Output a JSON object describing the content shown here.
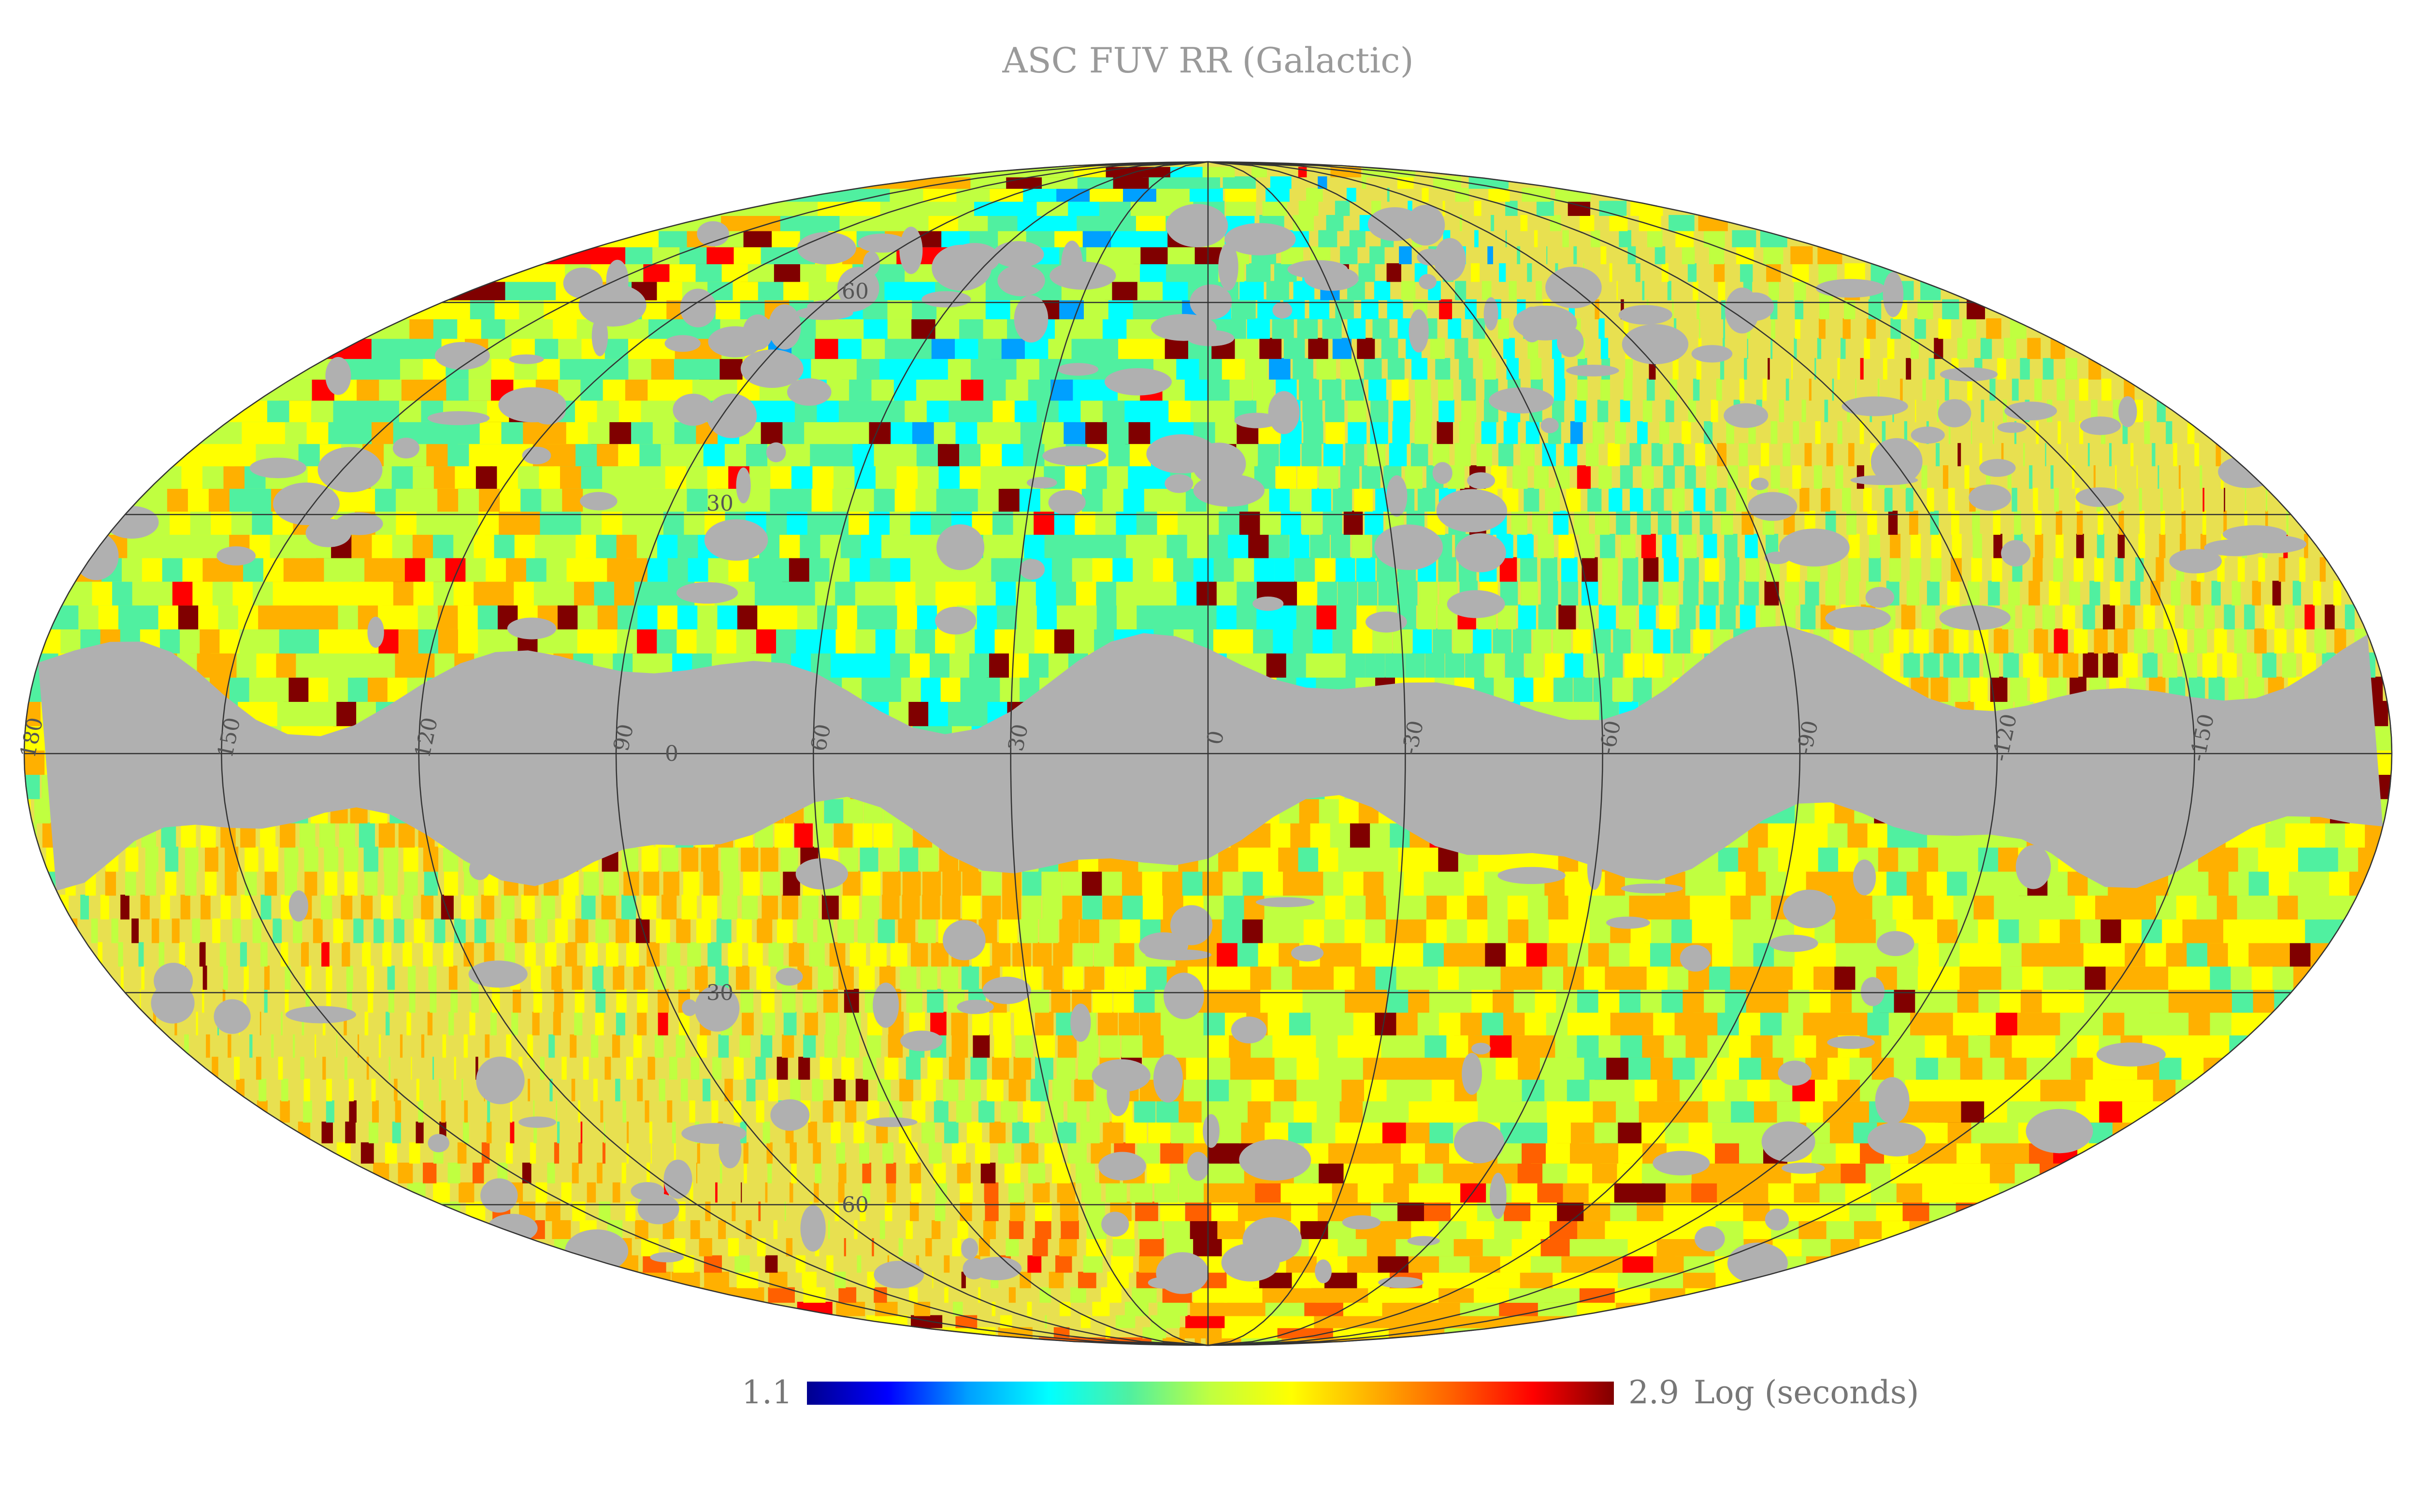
{
  "map": {
    "title": "ASC FUV RR (Galactic)",
    "projection": "mollweide",
    "coordinate_system": "Galactic",
    "background_masked_color": "#b0b0b0",
    "gridline_color": "#333333",
    "longitude_labels": [
      "180",
      "150",
      "120",
      "90",
      "60",
      "30",
      "0",
      "-30",
      "-60",
      "-90",
      "-120",
      "-150"
    ],
    "longitude_values": [
      180,
      150,
      120,
      90,
      60,
      30,
      0,
      -30,
      -60,
      -90,
      -120,
      -150
    ],
    "latitude_labels": [
      "60",
      "30",
      "0",
      "30",
      "60"
    ],
    "latitude_values": [
      60,
      30,
      0,
      -30,
      -60
    ],
    "masked_band_description": "Galactic plane region with no data (grey)"
  },
  "colorbar": {
    "min_label": "1.1",
    "max_label": "2.9",
    "min": 1.1,
    "max": 2.9,
    "units_label": "Log (seconds)",
    "colormap": "jet",
    "stops": [
      "#00008f",
      "#0000ff",
      "#00a0ff",
      "#00ffff",
      "#50f0a0",
      "#c0ff40",
      "#ffff00",
      "#ffb000",
      "#ff6000",
      "#ff0000",
      "#800000"
    ]
  }
}
